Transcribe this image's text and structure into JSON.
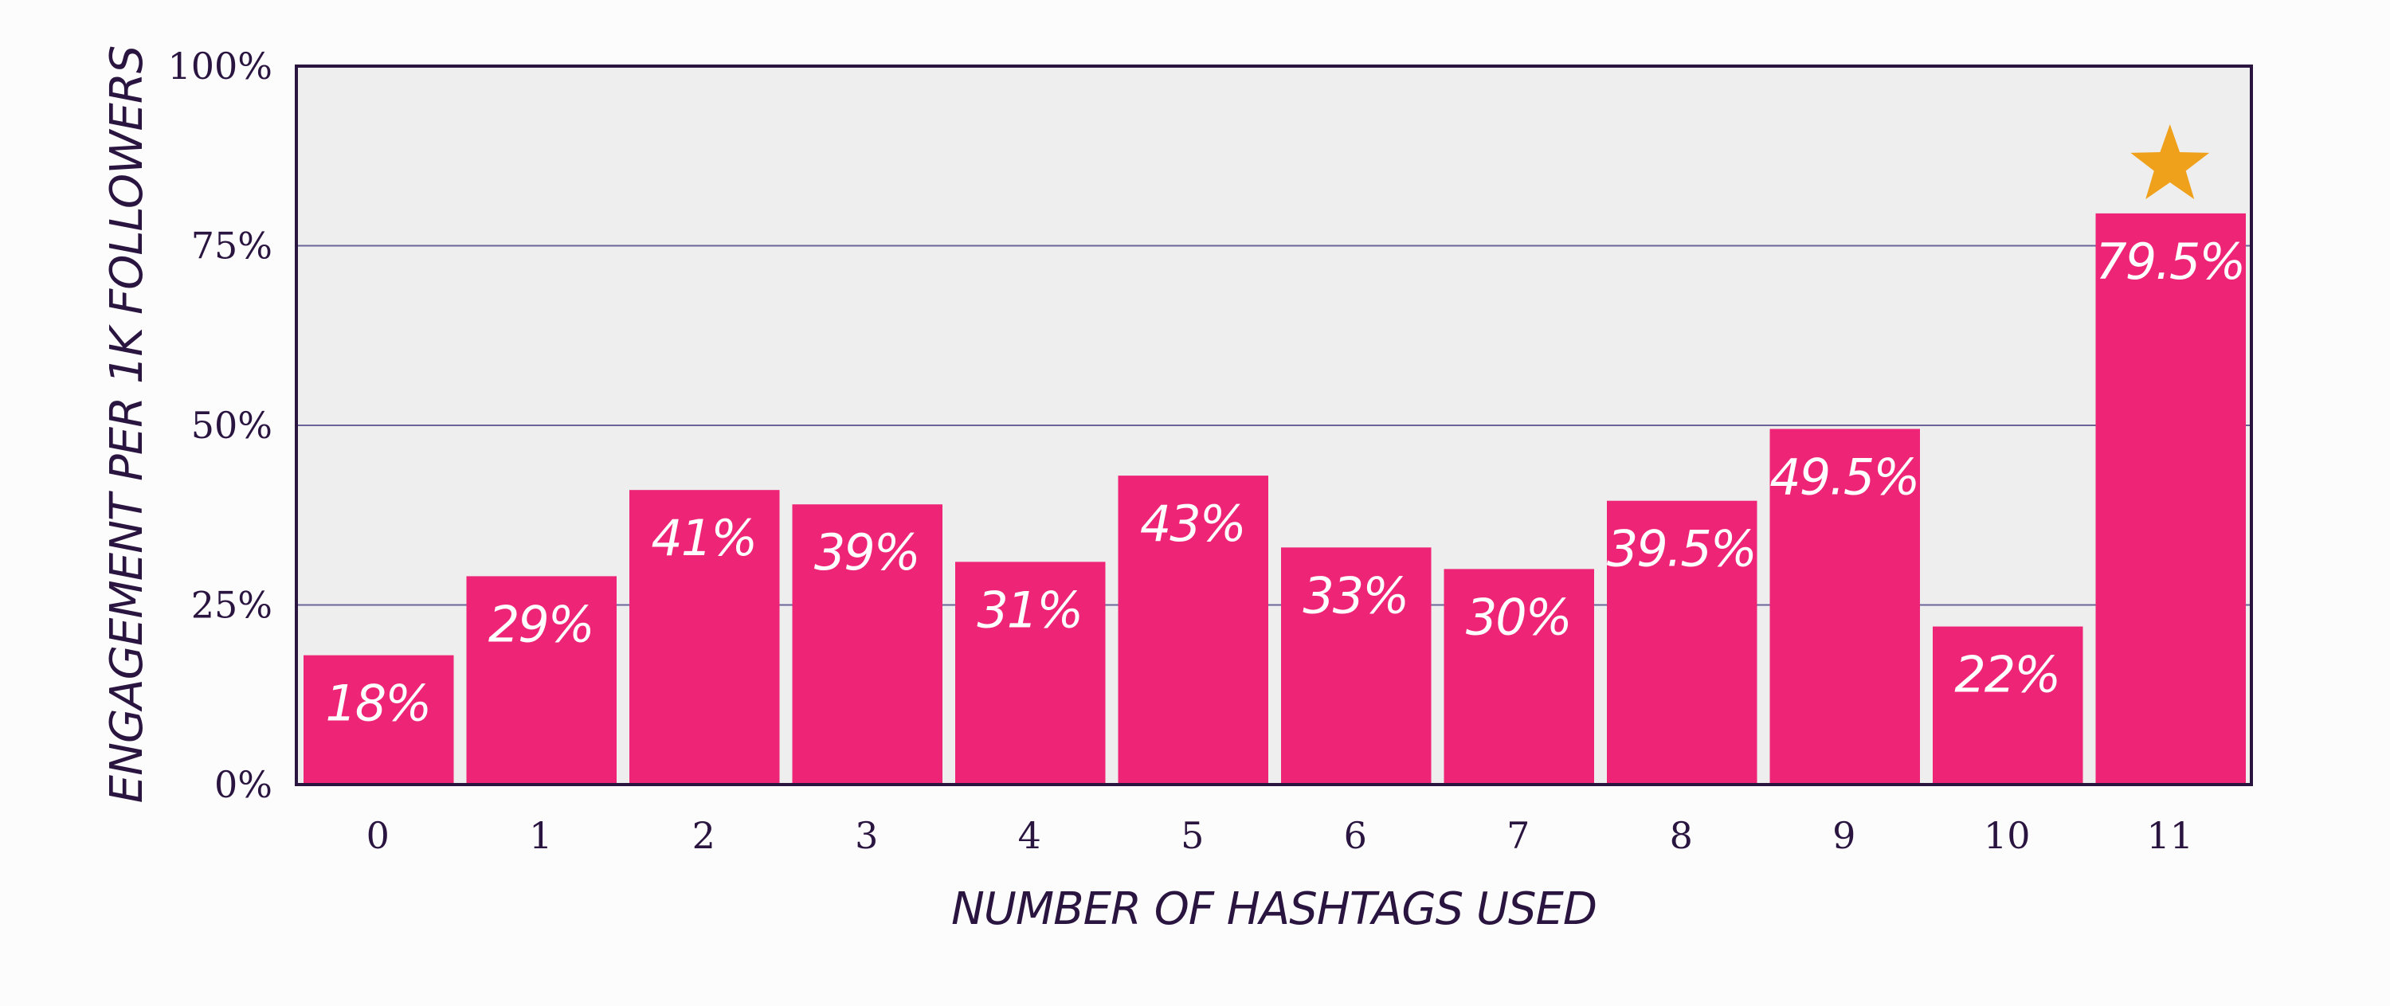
{
  "colors": {
    "bar": "#ee2476",
    "plot_background": "#eeeeee",
    "frame": "#2a1440",
    "gridline": "#6b6499",
    "text": "#2a1440",
    "star": "#f0a11c",
    "data_label": "#ffffff"
  },
  "chart_data": {
    "type": "bar",
    "title": "",
    "xlabel": "NUMBER OF HASHTAGS USED",
    "ylabel": "ENGAGEMENT PER 1K FOLLOWERS",
    "categories": [
      "0",
      "1",
      "2",
      "3",
      "4",
      "5",
      "6",
      "7",
      "8",
      "9",
      "10",
      "11"
    ],
    "values": [
      18,
      29,
      41,
      39,
      31,
      43,
      33,
      30,
      39.5,
      49.5,
      22,
      79.5
    ],
    "data_labels": [
      "18%",
      "29%",
      "41%",
      "39%",
      "31%",
      "43%",
      "33%",
      "30%",
      "39.5%",
      "49.5%",
      "22%",
      "79.5%"
    ],
    "ylim": [
      0,
      100
    ],
    "y_ticks": [
      0,
      25,
      50,
      75,
      100
    ],
    "y_tick_labels": [
      "0%",
      "25%",
      "50%",
      "75%",
      "100%"
    ],
    "grid": true,
    "highlight": {
      "category": "11",
      "icon": "star-icon"
    }
  }
}
